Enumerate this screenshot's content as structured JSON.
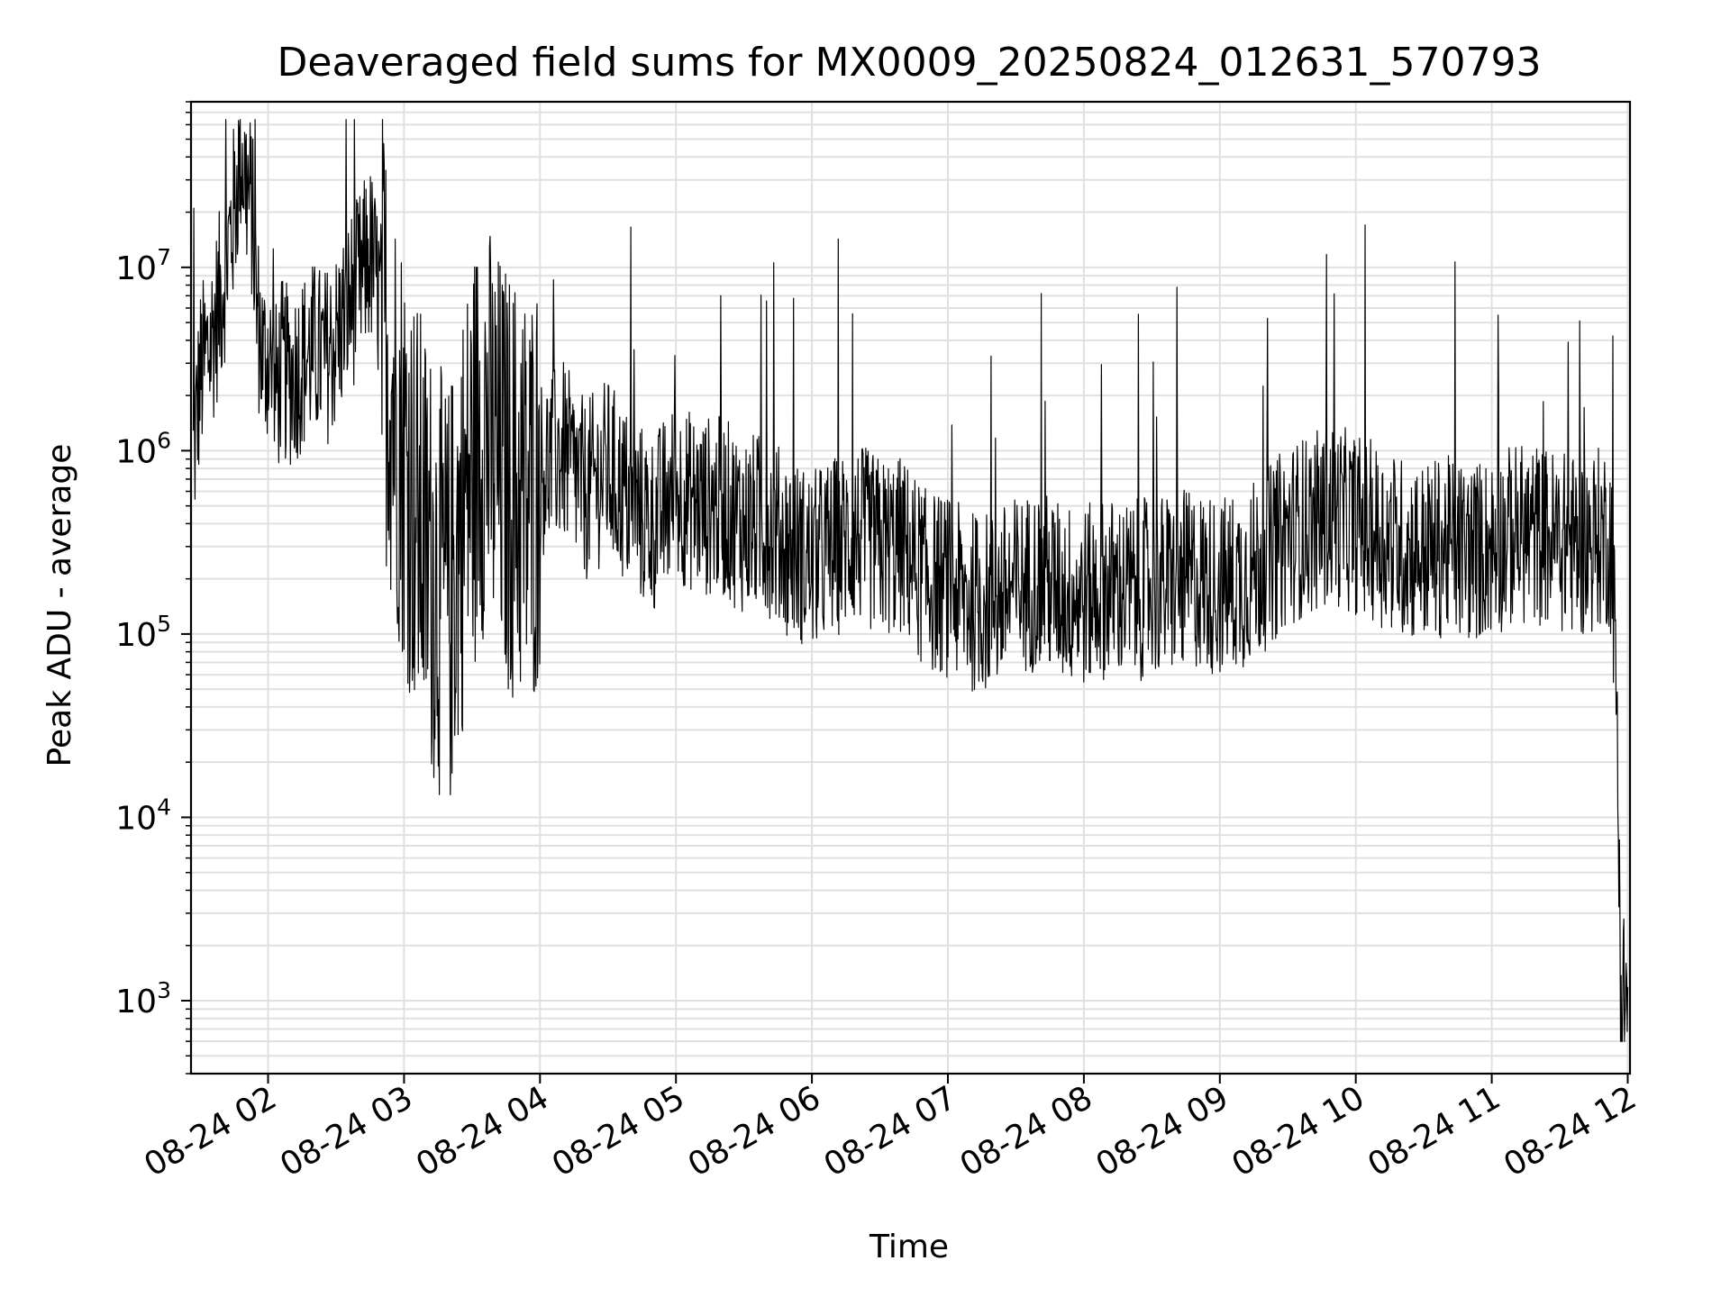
{
  "chart_data": {
    "type": "line",
    "title": "Deaveraged field sums for MX0009_20250824_012631_570793",
    "xlabel": "Time",
    "ylabel": "Peak ADU - average",
    "yscale": "log",
    "ylim": [
      400,
      80000000
    ],
    "xlim": [
      "2025-08-24 01:26",
      "2025-08-24 12:01"
    ],
    "grid": true,
    "line_color": "#000000",
    "grid_color": "#e0e0e0",
    "x_ticks": [
      {
        "label": "08-24 02",
        "value": "2025-08-24 02:00"
      },
      {
        "label": "08-24 03",
        "value": "2025-08-24 03:00"
      },
      {
        "label": "08-24 04",
        "value": "2025-08-24 04:00"
      },
      {
        "label": "08-24 05",
        "value": "2025-08-24 05:00"
      },
      {
        "label": "08-24 06",
        "value": "2025-08-24 06:00"
      },
      {
        "label": "08-24 07",
        "value": "2025-08-24 07:00"
      },
      {
        "label": "08-24 08",
        "value": "2025-08-24 08:00"
      },
      {
        "label": "08-24 09",
        "value": "2025-08-24 09:00"
      },
      {
        "label": "08-24 10",
        "value": "2025-08-24 10:00"
      },
      {
        "label": "08-24 11",
        "value": "2025-08-24 11:00"
      },
      {
        "label": "08-24 12",
        "value": "2025-08-24 12:00"
      }
    ],
    "y_ticks": [
      {
        "base": "10",
        "exp": "3",
        "value": 1000
      },
      {
        "base": "10",
        "exp": "4",
        "value": 10000
      },
      {
        "base": "10",
        "exp": "5",
        "value": 100000
      },
      {
        "base": "10",
        "exp": "6",
        "value": 1000000
      },
      {
        "base": "10",
        "exp": "7",
        "value": 10000000
      }
    ],
    "series": [
      {
        "x": [
          "2025-08-24 01:27",
          "2025-08-24 01:30",
          "2025-08-24 01:35",
          "2025-08-24 01:40",
          "2025-08-24 01:45",
          "2025-08-24 01:48",
          "2025-08-24 01:50",
          "2025-08-24 01:53",
          "2025-08-24 01:55",
          "2025-08-24 01:58",
          "2025-08-24 02:00",
          "2025-08-24 02:03",
          "2025-08-24 02:06",
          "2025-08-24 02:10",
          "2025-08-24 02:15",
          "2025-08-24 02:20",
          "2025-08-24 02:25",
          "2025-08-24 02:30",
          "2025-08-24 02:35",
          "2025-08-24 02:40",
          "2025-08-24 02:45",
          "2025-08-24 02:50",
          "2025-08-24 02:55",
          "2025-08-24 03:00",
          "2025-08-24 03:05",
          "2025-08-24 03:10",
          "2025-08-24 03:15",
          "2025-08-24 03:20",
          "2025-08-24 03:25",
          "2025-08-24 03:30",
          "2025-08-24 03:35",
          "2025-08-24 03:40",
          "2025-08-24 03:45",
          "2025-08-24 03:50",
          "2025-08-24 03:55",
          "2025-08-24 04:00",
          "2025-08-24 04:10",
          "2025-08-24 04:20",
          "2025-08-24 04:30",
          "2025-08-24 04:40",
          "2025-08-24 04:50",
          "2025-08-24 05:00",
          "2025-08-24 05:10",
          "2025-08-24 05:20",
          "2025-08-24 05:30",
          "2025-08-24 05:40",
          "2025-08-24 05:50",
          "2025-08-24 06:00",
          "2025-08-24 06:10",
          "2025-08-24 06:20",
          "2025-08-24 06:30",
          "2025-08-24 06:40",
          "2025-08-24 06:50",
          "2025-08-24 07:00",
          "2025-08-24 07:10",
          "2025-08-24 07:20",
          "2025-08-24 07:30",
          "2025-08-24 07:40",
          "2025-08-24 07:50",
          "2025-08-24 08:00",
          "2025-08-24 08:10",
          "2025-08-24 08:20",
          "2025-08-24 08:30",
          "2025-08-24 08:40",
          "2025-08-24 08:50",
          "2025-08-24 09:00",
          "2025-08-24 09:10",
          "2025-08-24 09:20",
          "2025-08-24 09:30",
          "2025-08-24 09:40",
          "2025-08-24 09:50",
          "2025-08-24 10:00",
          "2025-08-24 10:10",
          "2025-08-24 10:20",
          "2025-08-24 10:30",
          "2025-08-24 10:40",
          "2025-08-24 10:50",
          "2025-08-24 11:00",
          "2025-08-24 11:10",
          "2025-08-24 11:20",
          "2025-08-24 11:30",
          "2025-08-24 11:40",
          "2025-08-24 11:50",
          "2025-08-24 11:53",
          "2025-08-24 11:55",
          "2025-08-24 11:57",
          "2025-08-24 12:00"
        ],
        "values": [
          900000,
          2500000,
          4000000,
          8000000,
          20000000,
          45000000,
          30000000,
          20000000,
          6000000,
          3000000,
          3500000,
          2000000,
          2800000,
          2500000,
          3000000,
          3500000,
          3200000,
          4000000,
          6000000,
          8000000,
          12000000,
          6000000,
          2000000,
          1000000,
          500000,
          300000,
          200000,
          150000,
          400000,
          800000,
          1500000,
          900000,
          700000,
          600000,
          500000,
          800000,
          1000000,
          600000,
          800000,
          500000,
          400000,
          600000,
          500000,
          500000,
          400000,
          400000,
          300000,
          250000,
          300000,
          350000,
          300000,
          300000,
          200000,
          180000,
          150000,
          150000,
          180000,
          200000,
          170000,
          160000,
          180000,
          170000,
          180000,
          190000,
          200000,
          180000,
          200000,
          250000,
          350000,
          400000,
          450000,
          400000,
          350000,
          300000,
          280000,
          300000,
          280000,
          300000,
          350000,
          350000,
          320000,
          300000,
          350000,
          300000,
          50000,
          1200,
          1000
        ]
      }
    ]
  }
}
